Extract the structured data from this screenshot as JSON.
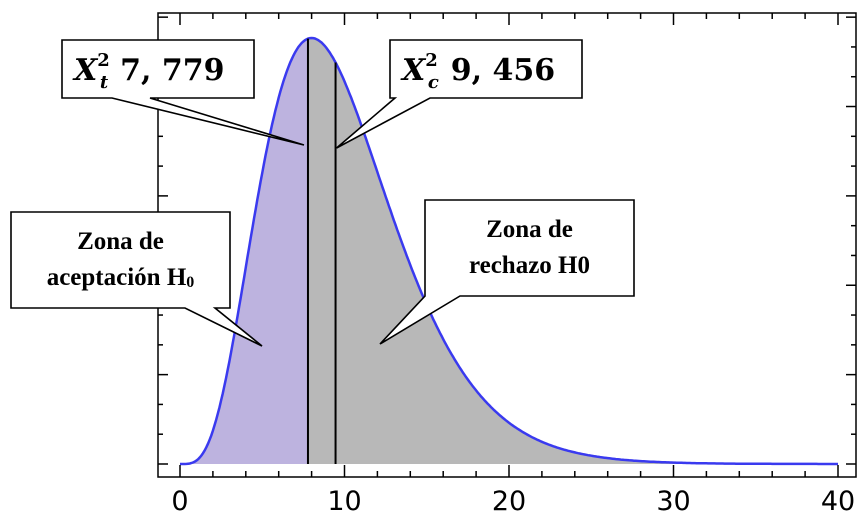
{
  "chart_data": {
    "type": "area",
    "distribution": "chi-square",
    "degrees_of_freedom": 10,
    "xlim": [
      0,
      40
    ],
    "ylim": [
      0,
      0.1
    ],
    "xticks": [
      0,
      10,
      20,
      30,
      40
    ],
    "x_tick_labels": [
      "0",
      "10",
      "20",
      "30",
      "40"
    ],
    "critical_values": [
      {
        "name": "tabla",
        "x": 7.779,
        "symbol": "X",
        "sub": "t",
        "sup": "2",
        "value_label": "7, 779"
      },
      {
        "name": "calculado",
        "x": 9.456,
        "symbol": "X",
        "sub": "c",
        "sup": "2",
        "value_label": "9, 456"
      }
    ],
    "regions": [
      {
        "name": "aceptacion",
        "from": 0,
        "to": 7.779,
        "color": "#bdb3df",
        "label_lines": [
          "Zona de",
          "aceptación H"
        ],
        "label_sub": "0"
      },
      {
        "name": "rechazo",
        "from": 7.779,
        "to": 40,
        "color": "#b8b8b8",
        "label_lines": [
          "Zona de",
          "rechazo H0"
        ]
      }
    ],
    "curve_color": "#3a3aef",
    "grid": false,
    "legend": "none"
  }
}
